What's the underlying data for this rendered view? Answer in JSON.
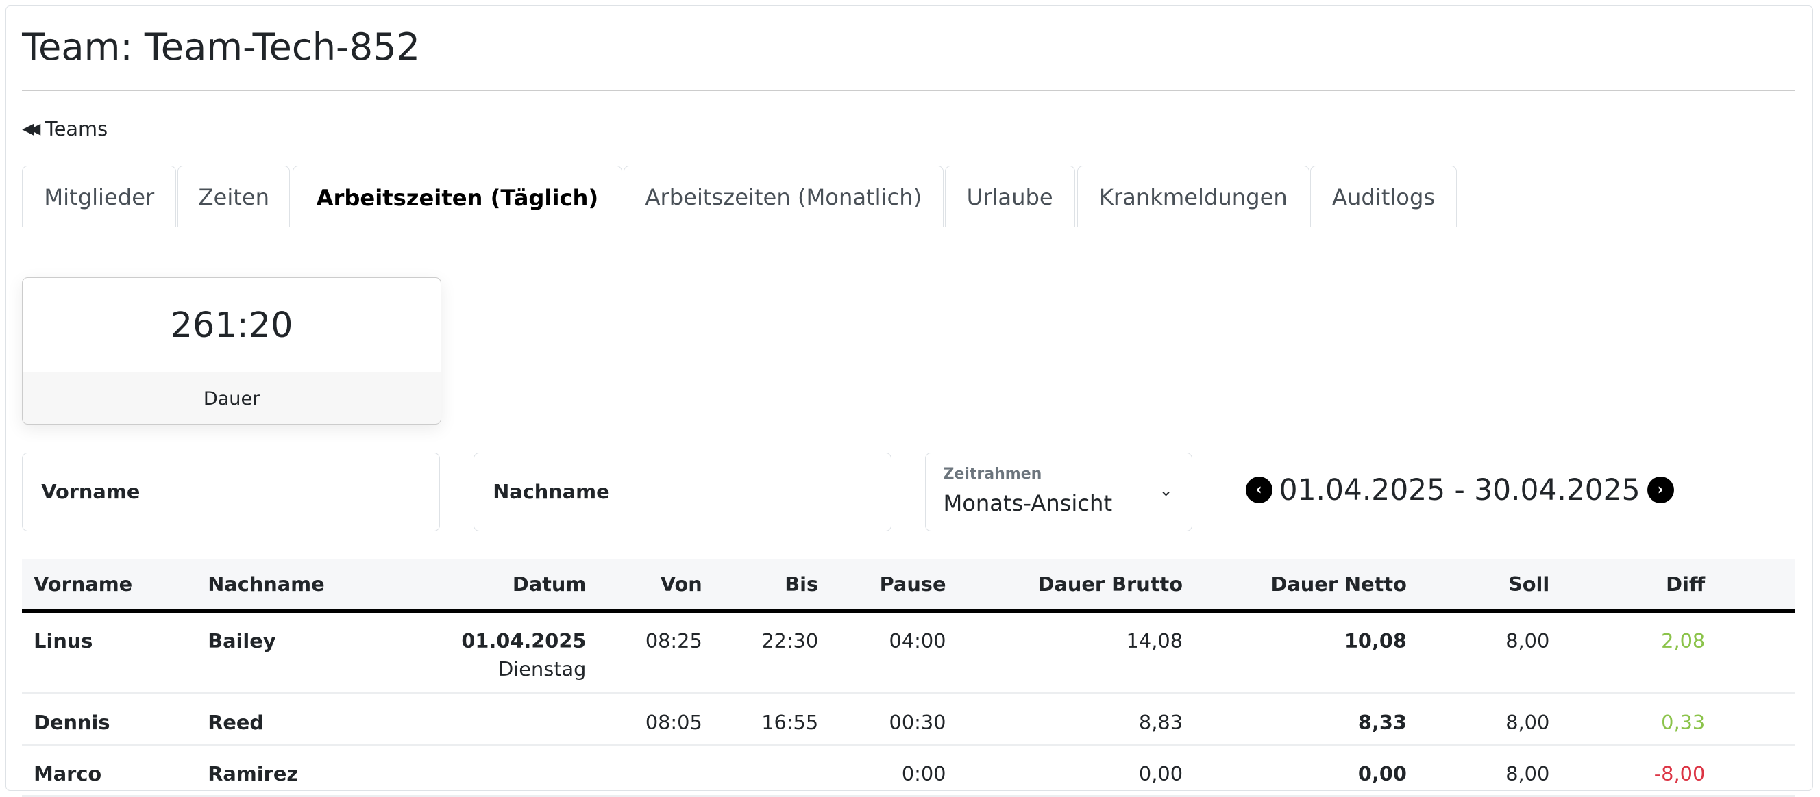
{
  "title": "Team: Team-Tech-852",
  "back_link": {
    "label": "Teams",
    "icon": "backward-icon"
  },
  "tabs": [
    {
      "label": "Mitglieder"
    },
    {
      "label": "Zeiten"
    },
    {
      "label": "Arbeitszeiten (Täglich)",
      "active": true
    },
    {
      "label": "Arbeitszeiten (Monatlich)"
    },
    {
      "label": "Urlaube"
    },
    {
      "label": "Krankmeldungen"
    },
    {
      "label": "Auditlogs"
    }
  ],
  "stat": {
    "value": "261:20",
    "label": "Dauer"
  },
  "filters": {
    "vorname_placeholder": "Vorname",
    "nachname_placeholder": "Nachname",
    "zeitrahmen_label": "Zeitrahmen",
    "zeitrahmen_value": "Monats-Ansicht"
  },
  "date_range": "01.04.2025 - 30.04.2025",
  "colors": {
    "positive": "#8bc34a",
    "negative": "#dc3545"
  },
  "table": {
    "headers": [
      "Vorname",
      "Nachname",
      "Datum",
      "Von",
      "Bis",
      "Pause",
      "Dauer Brutto",
      "Dauer Netto",
      "Soll",
      "Diff"
    ],
    "rows": [
      {
        "vorname": "Linus",
        "nachname": "Bailey",
        "datum": "01.04.2025",
        "wochentag": "Dienstag",
        "von": "08:25",
        "bis": "22:30",
        "pause": "04:00",
        "brutto": "14,08",
        "netto": "10,08",
        "soll": "8,00",
        "diff": "2,08",
        "sign": "positive"
      },
      {
        "vorname": "Dennis",
        "nachname": "Reed",
        "datum": "",
        "wochentag": "",
        "von": "08:05",
        "bis": "16:55",
        "pause": "00:30",
        "brutto": "8,83",
        "netto": "8,33",
        "soll": "8,00",
        "diff": "0,33",
        "sign": "positive"
      },
      {
        "vorname": "Marco",
        "nachname": "Ramirez",
        "datum": "",
        "wochentag": "",
        "von": "",
        "bis": "",
        "pause": "0:00",
        "brutto": "0,00",
        "netto": "0,00",
        "soll": "8,00",
        "diff": "-8,00",
        "sign": "negative"
      }
    ]
  }
}
